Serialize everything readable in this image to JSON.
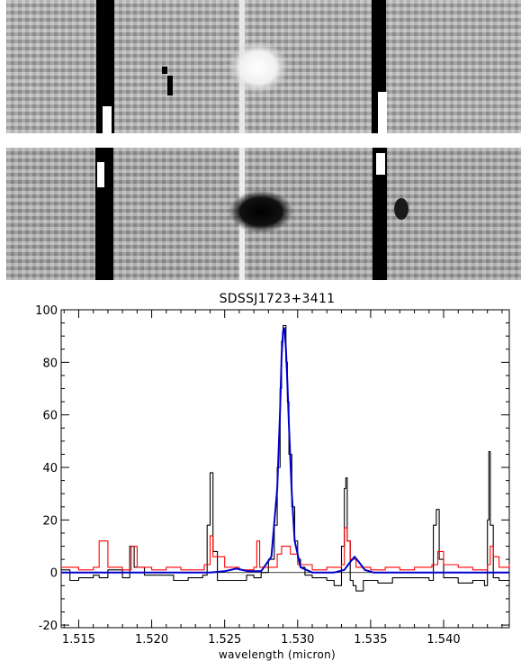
{
  "panels": [
    {
      "name": "spectrum-image-upper",
      "tone": "positive"
    },
    {
      "name": "spectrum-image-lower",
      "tone": "negative"
    }
  ],
  "chart_data": {
    "type": "line",
    "title": "SDSSJ1723+3411",
    "xlabel": "wavelength (micron)",
    "ylabel": "",
    "xlim": [
      1.5138,
      1.5445
    ],
    "ylim": [
      -21,
      100
    ],
    "xticks": [
      1.515,
      1.52,
      1.525,
      1.53,
      1.535,
      1.54
    ],
    "xtick_labels": [
      "1.515",
      "1.520",
      "1.525",
      "1.530",
      "1.535",
      "1.540"
    ],
    "yticks": [
      -20,
      0,
      20,
      40,
      60,
      80,
      100
    ],
    "ytick_labels": [
      "-20",
      "0",
      "20",
      "40",
      "60",
      "80",
      "100"
    ],
    "grid": false,
    "legend": "none",
    "series": [
      {
        "color": "#000000",
        "style": "steps",
        "x": [
          1.5138,
          1.5144,
          1.515,
          1.516,
          1.5164,
          1.517,
          1.518,
          1.5185,
          1.5188,
          1.5195,
          1.5205,
          1.5215,
          1.5225,
          1.5235,
          1.5238,
          1.524,
          1.5242,
          1.5245,
          1.5255,
          1.5265,
          1.527,
          1.5275,
          1.528,
          1.5284,
          1.5286,
          1.5288,
          1.5289,
          1.529,
          1.5291,
          1.5292,
          1.5293,
          1.5294,
          1.5296,
          1.5298,
          1.53,
          1.5302,
          1.5305,
          1.531,
          1.532,
          1.5325,
          1.533,
          1.5332,
          1.5333,
          1.5334,
          1.5336,
          1.5338,
          1.534,
          1.5345,
          1.5355,
          1.5365,
          1.538,
          1.539,
          1.5393,
          1.5395,
          1.5397,
          1.54,
          1.541,
          1.542,
          1.5428,
          1.543,
          1.5431,
          1.5432,
          1.5434,
          1.5438,
          1.5445
        ],
        "y": [
          1,
          -3,
          -2,
          -1,
          -2,
          1,
          -2,
          10,
          2,
          -1,
          -1,
          -3,
          -2,
          -1,
          18,
          38,
          8,
          -3,
          -3,
          -1,
          -2,
          0,
          5,
          18,
          40,
          70,
          88,
          94,
          94,
          80,
          65,
          45,
          25,
          12,
          5,
          2,
          -1,
          -2,
          -3,
          -5,
          10,
          32,
          36,
          12,
          -3,
          -5,
          -7,
          -3,
          -4,
          -2,
          -2,
          -3,
          18,
          24,
          5,
          -2,
          -4,
          -3,
          -5,
          20,
          46,
          18,
          -2,
          -3,
          -5
        ]
      },
      {
        "color": "#ff0000",
        "style": "steps",
        "x": [
          1.5138,
          1.515,
          1.516,
          1.5164,
          1.517,
          1.518,
          1.5186,
          1.519,
          1.52,
          1.521,
          1.522,
          1.5236,
          1.524,
          1.5242,
          1.525,
          1.526,
          1.527,
          1.5272,
          1.5274,
          1.5282,
          1.5286,
          1.5289,
          1.5292,
          1.5295,
          1.53,
          1.531,
          1.532,
          1.533,
          1.5332,
          1.5334,
          1.5336,
          1.534,
          1.535,
          1.536,
          1.537,
          1.538,
          1.5392,
          1.5396,
          1.54,
          1.541,
          1.542,
          1.543,
          1.5432,
          1.5434,
          1.5438,
          1.5445
        ],
        "y": [
          2,
          1,
          2,
          12,
          2,
          1,
          10,
          2,
          1,
          2,
          1,
          3,
          14,
          6,
          2,
          1,
          2,
          12,
          2,
          2,
          7,
          10,
          10,
          7,
          3,
          1,
          2,
          3,
          17,
          12,
          5,
          2,
          1,
          2,
          1,
          2,
          3,
          8,
          3,
          2,
          1,
          3,
          10,
          6,
          2,
          3
        ]
      },
      {
        "color": "#0000cc",
        "style": "smooth",
        "x": [
          1.5138,
          1.524,
          1.525,
          1.5258,
          1.5266,
          1.5275,
          1.5282,
          1.5286,
          1.5288,
          1.5289,
          1.529,
          1.5291,
          1.5292,
          1.5293,
          1.5294,
          1.5296,
          1.5298,
          1.5302,
          1.531,
          1.5325,
          1.5332,
          1.5336,
          1.5339,
          1.5342,
          1.5346,
          1.5352,
          1.5445
        ],
        "y": [
          0,
          0,
          0.5,
          1.5,
          0.5,
          0.5,
          6,
          32,
          62,
          82,
          92,
          93,
          85,
          72,
          56,
          30,
          12,
          2,
          0,
          0,
          1,
          4,
          6,
          4,
          1,
          0,
          0
        ]
      }
    ]
  }
}
